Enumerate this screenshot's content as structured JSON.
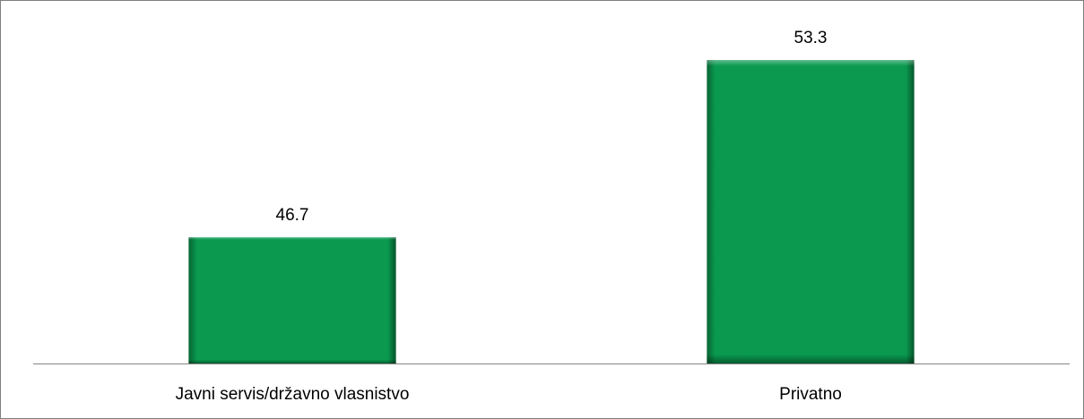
{
  "chart_data": {
    "type": "bar",
    "categories": [
      "Javni servis/državno vlasnistvo",
      "Privatno"
    ],
    "values": [
      46.7,
      53.3
    ],
    "color": "#0a994f",
    "ylim": [
      42,
      55
    ]
  }
}
